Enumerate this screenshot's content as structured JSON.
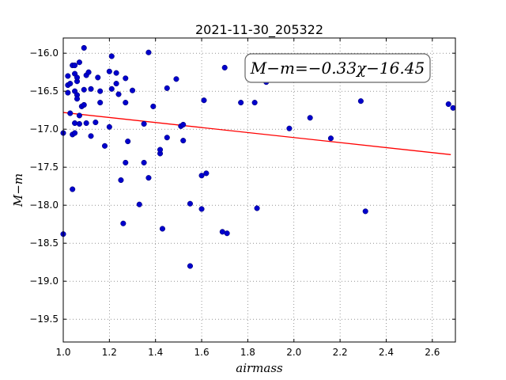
{
  "chart_data": {
    "type": "scatter",
    "title": "2021-11-30_205322",
    "xlabel": "airmass",
    "ylabel": "M−m",
    "xlim": [
      1.0,
      2.7
    ],
    "ylim": [
      -19.8,
      -15.8
    ],
    "xticks": [
      1.0,
      1.2,
      1.4,
      1.6,
      1.8,
      2.0,
      2.2,
      2.4,
      2.6
    ],
    "xtick_labels": [
      "1.0",
      "1.2",
      "1.4",
      "1.6",
      "1.8",
      "2.0",
      "2.2",
      "2.4",
      "2.6"
    ],
    "yticks": [
      -16.0,
      -16.5,
      -17.0,
      -17.5,
      -18.0,
      -18.5,
      -19.0,
      -19.5
    ],
    "ytick_labels": [
      "−16.0",
      "−16.5",
      "−17.0",
      "−17.5",
      "−18.0",
      "−18.5",
      "−19.0",
      "−19.5"
    ],
    "grid": true,
    "annotation": "M−m=−0.33χ−16.45",
    "fit": {
      "slope": -0.33,
      "intercept": -16.45,
      "x_range": [
        1.0,
        2.68
      ],
      "color": "#ff0000"
    },
    "point_color": "#0000cc",
    "points": [
      [
        1.0,
        -18.38
      ],
      [
        1.0,
        -17.05
      ],
      [
        1.02,
        -16.52
      ],
      [
        1.02,
        -16.3
      ],
      [
        1.02,
        -16.42
      ],
      [
        1.03,
        -16.4
      ],
      [
        1.03,
        -16.79
      ],
      [
        1.04,
        -16.16
      ],
      [
        1.04,
        -17.79
      ],
      [
        1.04,
        -17.07
      ],
      [
        1.05,
        -17.05
      ],
      [
        1.05,
        -16.16
      ],
      [
        1.05,
        -16.27
      ],
      [
        1.05,
        -16.5
      ],
      [
        1.05,
        -16.92
      ],
      [
        1.06,
        -16.55
      ],
      [
        1.06,
        -16.37
      ],
      [
        1.06,
        -16.32
      ],
      [
        1.06,
        -16.6
      ],
      [
        1.07,
        -16.12
      ],
      [
        1.07,
        -16.93
      ],
      [
        1.07,
        -16.82
      ],
      [
        1.08,
        -16.7
      ],
      [
        1.09,
        -15.93
      ],
      [
        1.09,
        -16.48
      ],
      [
        1.09,
        -16.68
      ],
      [
        1.1,
        -16.92
      ],
      [
        1.1,
        -16.29
      ],
      [
        1.11,
        -16.25
      ],
      [
        1.12,
        -16.47
      ],
      [
        1.12,
        -17.09
      ],
      [
        1.14,
        -16.91
      ],
      [
        1.15,
        -16.32
      ],
      [
        1.16,
        -16.65
      ],
      [
        1.16,
        -16.5
      ],
      [
        1.18,
        -17.22
      ],
      [
        1.2,
        -16.97
      ],
      [
        1.2,
        -16.24
      ],
      [
        1.21,
        -16.04
      ],
      [
        1.21,
        -16.47
      ],
      [
        1.23,
        -16.4
      ],
      [
        1.23,
        -16.26
      ],
      [
        1.24,
        -16.54
      ],
      [
        1.25,
        -17.67
      ],
      [
        1.26,
        -18.24
      ],
      [
        1.27,
        -17.44
      ],
      [
        1.27,
        -16.65
      ],
      [
        1.27,
        -16.33
      ],
      [
        1.28,
        -17.16
      ],
      [
        1.3,
        -16.49
      ],
      [
        1.33,
        -17.99
      ],
      [
        1.35,
        -16.93
      ],
      [
        1.35,
        -17.44
      ],
      [
        1.37,
        -15.99
      ],
      [
        1.37,
        -17.64
      ],
      [
        1.39,
        -16.7
      ],
      [
        1.42,
        -17.32
      ],
      [
        1.42,
        -17.27
      ],
      [
        1.43,
        -18.31
      ],
      [
        1.45,
        -16.46
      ],
      [
        1.45,
        -17.11
      ],
      [
        1.49,
        -16.34
      ],
      [
        1.51,
        -16.96
      ],
      [
        1.52,
        -16.94
      ],
      [
        1.52,
        -17.15
      ],
      [
        1.55,
        -17.98
      ],
      [
        1.55,
        -18.8
      ],
      [
        1.6,
        -17.61
      ],
      [
        1.6,
        -18.05
      ],
      [
        1.61,
        -16.62
      ],
      [
        1.62,
        -17.58
      ],
      [
        1.69,
        -18.35
      ],
      [
        1.7,
        -16.19
      ],
      [
        1.71,
        -18.37
      ],
      [
        1.77,
        -16.65
      ],
      [
        1.83,
        -16.65
      ],
      [
        1.84,
        -18.04
      ],
      [
        1.88,
        -16.38
      ],
      [
        1.98,
        -16.99
      ],
      [
        2.07,
        -16.85
      ],
      [
        2.16,
        -17.12
      ],
      [
        2.29,
        -16.63
      ],
      [
        2.31,
        -18.08
      ],
      [
        2.67,
        -16.67
      ],
      [
        2.69,
        -16.72
      ]
    ]
  }
}
